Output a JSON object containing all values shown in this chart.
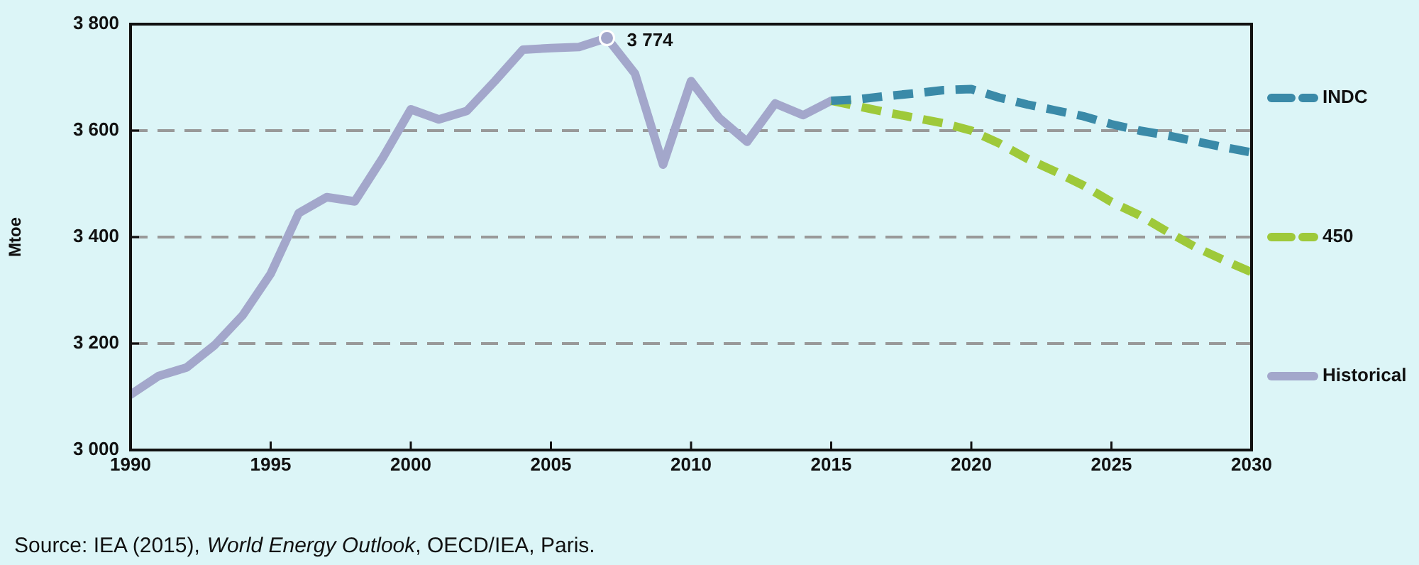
{
  "chart_data": {
    "type": "line",
    "ylabel": "Mtoe",
    "xlim": [
      1990,
      2030
    ],
    "xticks": [
      1990,
      1995,
      2000,
      2005,
      2010,
      2015,
      2020,
      2025,
      2030
    ],
    "ylim": [
      3000,
      3800
    ],
    "yticks": [
      {
        "value": 3000,
        "label": "3 000"
      },
      {
        "value": 3200,
        "label": "3 200"
      },
      {
        "value": 3400,
        "label": "3 400"
      },
      {
        "value": 3600,
        "label": "3 600"
      },
      {
        "value": 3800,
        "label": "3 800"
      }
    ],
    "grid": "y",
    "legend": "right",
    "marker": "none",
    "series": [
      {
        "name": "INDC",
        "color": "#3a8aa8",
        "line_style": "dashed",
        "x": [
          2015,
          2016,
          2017,
          2018,
          2019,
          2020,
          2021,
          2022,
          2023,
          2024,
          2025,
          2026,
          2027,
          2028,
          2029,
          2030
        ],
        "values": [
          3656,
          3659,
          3665,
          3670,
          3676,
          3678,
          3662,
          3649,
          3638,
          3627,
          3612,
          3600,
          3591,
          3580,
          3569,
          3559
        ]
      },
      {
        "name": "450",
        "color": "#9ec93a",
        "line_style": "dashed",
        "x": [
          2015,
          2016,
          2017,
          2018,
          2019,
          2020,
          2021,
          2022,
          2023,
          2024,
          2025,
          2026,
          2027,
          2028,
          2029,
          2030
        ],
        "values": [
          3656,
          3645,
          3634,
          3624,
          3614,
          3600,
          3576,
          3547,
          3523,
          3497,
          3466,
          3441,
          3410,
          3381,
          3357,
          3334
        ]
      },
      {
        "name": "Historical",
        "color": "#a3a7cb",
        "line_style": "solid",
        "x": [
          1990,
          1991,
          1992,
          1993,
          1994,
          1995,
          1996,
          1997,
          1998,
          1999,
          2000,
          2001,
          2002,
          2003,
          2004,
          2005,
          2006,
          2007,
          2008,
          2009,
          2010,
          2011,
          2012,
          2013,
          2014,
          2015
        ],
        "values": [
          3104,
          3139,
          3155,
          3197,
          3253,
          3331,
          3445,
          3475,
          3467,
          3549,
          3640,
          3621,
          3637,
          3693,
          3752,
          3755,
          3757,
          3774,
          3707,
          3536,
          3693,
          3624,
          3579,
          3651,
          3629,
          3656
        ]
      }
    ],
    "annotations": [
      {
        "text": "3 774",
        "x": 2007,
        "y": 3774
      },
      "Source: IEA (2015), World Energy Outlook, OECD/IEA, Paris."
    ]
  }
}
